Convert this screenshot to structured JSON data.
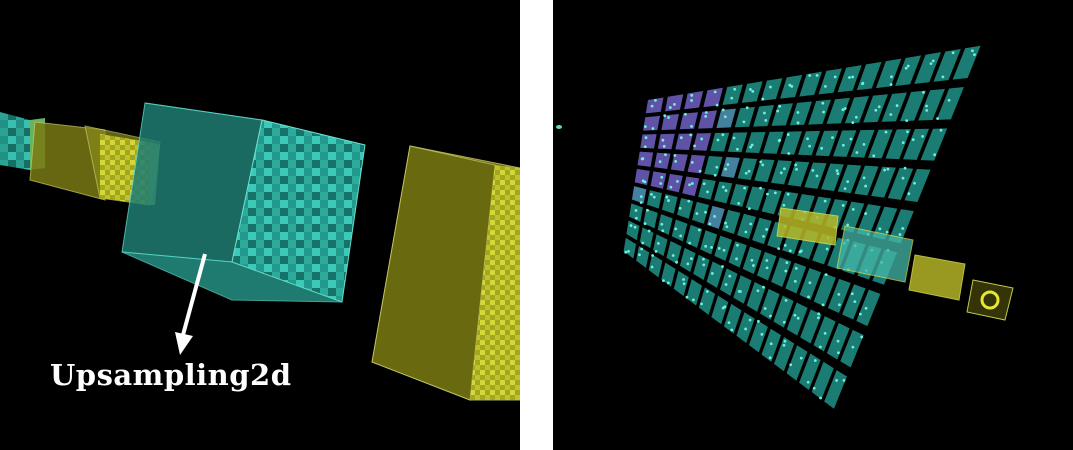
{
  "left_panel": {
    "annotation_label": "Upsampling2d"
  },
  "colors": {
    "background": "#000000",
    "divider": "#ffffff",
    "teal": "#2fb5a4",
    "teal_light": "#53e0cf",
    "teal_dark": "#145e57",
    "olive": "#8a8a1c",
    "olive_dark": "#5b5b10",
    "yellow": "#d6df3a",
    "purple": "#7a5fc2"
  },
  "right_panel": {
    "grid_rows": 9,
    "grid_cols": 17
  }
}
